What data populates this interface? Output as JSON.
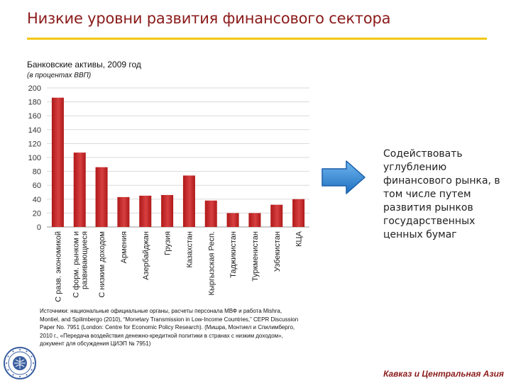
{
  "slide": {
    "title": "Низкие уровни развития финансового сектора",
    "message": "Содействовать углублению финансового рынка, в том числе путем развития рынков государственных ценных бумаг",
    "source": "Источники: национальные официальные органы, расчеты персонала МВФ и работа Mishra, Montiel, and Spilimbergo (2010), “Monetary Transmission in Low-Income Countries,” CEPR Discussion Paper No. 7951 (London: Centre for Economic Policy Research). (Мишра, Монтиел и Спилимберго, 2010 г., «Передача воздействия денежно-кредитной политики в странах с низким доходом», документ для обсуждения ЦИЭП № 7951)",
    "footer": "Кавказ и Центральная Азия"
  },
  "colors": {
    "bar": "#B01818",
    "bar_light": "#D64040",
    "title": "#8B1A1A",
    "rule": "#F2C811",
    "arrow": "#2F86D6"
  },
  "icons": {
    "arrow": "arrow-right-icon",
    "logo": "imf-seal-logo"
  },
  "chart_data": {
    "type": "bar",
    "title": "Банковские активы, 2009 год",
    "subtitle": "(в процентах ВВП)",
    "categories": [
      "С разв. экономикой",
      "С форм. рынком и развивающиеся",
      "С низким доходом",
      "Армения",
      "Азербайджан",
      "Грузия",
      "Казахстан",
      "Кыргызская Респ.",
      "Таджикистан",
      "Туркменистан",
      "Узбекистан",
      "КЦА"
    ],
    "values": [
      186,
      107,
      86,
      43,
      45,
      46,
      74,
      38,
      20,
      20,
      32,
      40
    ],
    "ylim": [
      0,
      200
    ],
    "yticks": [
      0,
      20,
      40,
      60,
      80,
      100,
      120,
      140,
      160,
      180,
      200
    ],
    "grid": true
  }
}
